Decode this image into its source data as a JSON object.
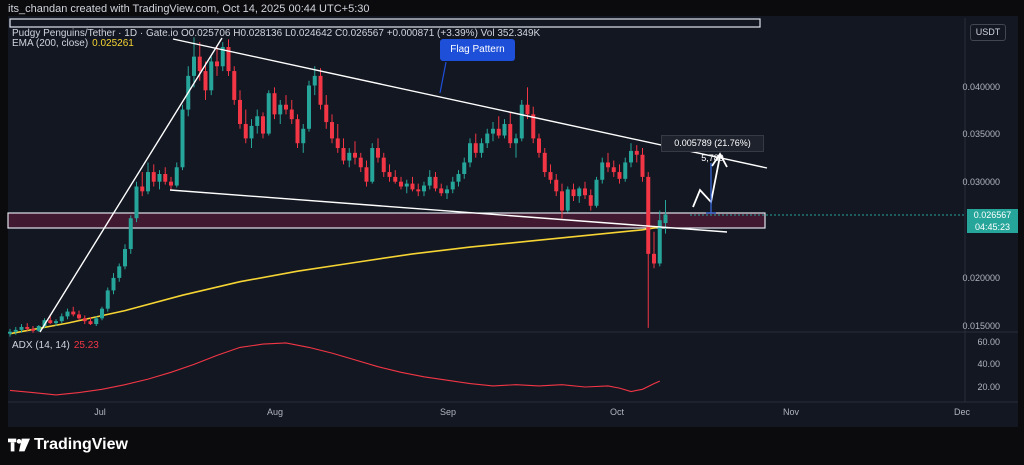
{
  "credit": "its_chandan created with TradingView.com, Oct 14, 2025 00:44 UTC+5:30",
  "symbol_line": "Pudgy Penguins/Tether · 1D · Gate.io  O0.025706 H0.028136 L0.024642 C0.026567 +0.000871 (+3.39%)  Vol 352.349K",
  "ema_label": "EMA (200, close)",
  "ema_value": "0.025261",
  "adx_label": "ADX (14, 14)",
  "adx_value": "25.23",
  "currency": "USDT",
  "price_labels": [
    "0.040000",
    "0.035000",
    "0.030000",
    "0.020000",
    "0.015000"
  ],
  "adx_labels": [
    "60.00",
    "40.00",
    "20.00"
  ],
  "x_labels": [
    "Jul",
    "Aug",
    "Sep",
    "Oct",
    "Nov",
    "Dec"
  ],
  "current_price": "0.026567",
  "countdown": "04:45:23",
  "callout": "Flag Pattern",
  "measurement": "0.005789 (21.76%) 5,789",
  "logo": "TradingView",
  "colors": {
    "up": "#26a69a",
    "down": "#f23645",
    "ema": "#f5d433",
    "adx": "#f23645",
    "zone": "#4a1a33"
  },
  "chart_data": {
    "type": "candlestick",
    "pair": "Pudgy Penguins/Tether",
    "timeframe": "1D",
    "exchange": "Gate.io",
    "ylim": [
      0.0145,
      0.0455
    ],
    "x_start": "2025-06-10",
    "candles": [
      [
        0.0142,
        0.0147,
        0.0139,
        0.0144
      ],
      [
        0.0144,
        0.0149,
        0.0141,
        0.0146
      ],
      [
        0.0146,
        0.0152,
        0.0143,
        0.0149
      ],
      [
        0.0149,
        0.0153,
        0.0145,
        0.0147
      ],
      [
        0.0147,
        0.015,
        0.0143,
        0.0145
      ],
      [
        0.0145,
        0.0151,
        0.0144,
        0.015
      ],
      [
        0.015,
        0.0158,
        0.0148,
        0.0156
      ],
      [
        0.0156,
        0.0162,
        0.0152,
        0.0153
      ],
      [
        0.0153,
        0.0157,
        0.015,
        0.0155
      ],
      [
        0.0155,
        0.0163,
        0.0153,
        0.016
      ],
      [
        0.016,
        0.0168,
        0.0157,
        0.0165
      ],
      [
        0.0165,
        0.017,
        0.016,
        0.0162
      ],
      [
        0.0162,
        0.0166,
        0.0156,
        0.0158
      ],
      [
        0.0158,
        0.0161,
        0.0152,
        0.0155
      ],
      [
        0.0155,
        0.0159,
        0.0151,
        0.0152
      ],
      [
        0.0152,
        0.016,
        0.015,
        0.0158
      ],
      [
        0.0158,
        0.017,
        0.0156,
        0.0168
      ],
      [
        0.0168,
        0.019,
        0.0165,
        0.0187
      ],
      [
        0.0187,
        0.0205,
        0.0183,
        0.02
      ],
      [
        0.02,
        0.0215,
        0.0196,
        0.0212
      ],
      [
        0.0212,
        0.0235,
        0.0209,
        0.023
      ],
      [
        0.023,
        0.0265,
        0.0225,
        0.0262
      ],
      [
        0.0262,
        0.03,
        0.0258,
        0.0295
      ],
      [
        0.0295,
        0.031,
        0.0285,
        0.029
      ],
      [
        0.029,
        0.032,
        0.0287,
        0.031
      ],
      [
        0.031,
        0.0318,
        0.0295,
        0.03
      ],
      [
        0.03,
        0.0312,
        0.0292,
        0.0308
      ],
      [
        0.0308,
        0.0315,
        0.0297,
        0.03
      ],
      [
        0.03,
        0.0305,
        0.0292,
        0.0296
      ],
      [
        0.0296,
        0.032,
        0.0294,
        0.0315
      ],
      [
        0.0315,
        0.038,
        0.0312,
        0.0375
      ],
      [
        0.0375,
        0.042,
        0.0368,
        0.041
      ],
      [
        0.041,
        0.045,
        0.0398,
        0.043
      ],
      [
        0.043,
        0.0445,
        0.0405,
        0.0415
      ],
      [
        0.0415,
        0.0425,
        0.0385,
        0.0395
      ],
      [
        0.0395,
        0.043,
        0.039,
        0.0425
      ],
      [
        0.0425,
        0.044,
        0.041,
        0.042
      ],
      [
        0.042,
        0.0445,
        0.0415,
        0.044
      ],
      [
        0.044,
        0.0448,
        0.041,
        0.0415
      ],
      [
        0.0415,
        0.042,
        0.038,
        0.0385
      ],
      [
        0.0385,
        0.0395,
        0.0355,
        0.036
      ],
      [
        0.036,
        0.0375,
        0.034,
        0.0345
      ],
      [
        0.0345,
        0.0365,
        0.0335,
        0.0358
      ],
      [
        0.0358,
        0.0375,
        0.035,
        0.0368
      ],
      [
        0.0368,
        0.0372,
        0.0345,
        0.035
      ],
      [
        0.035,
        0.0395,
        0.0348,
        0.0392
      ],
      [
        0.0392,
        0.0398,
        0.0365,
        0.037
      ],
      [
        0.037,
        0.0385,
        0.036,
        0.038
      ],
      [
        0.038,
        0.039,
        0.037,
        0.0375
      ],
      [
        0.0375,
        0.0385,
        0.036,
        0.0365
      ],
      [
        0.0365,
        0.037,
        0.0335,
        0.034
      ],
      [
        0.034,
        0.036,
        0.033,
        0.0355
      ],
      [
        0.0355,
        0.0405,
        0.0352,
        0.04
      ],
      [
        0.04,
        0.042,
        0.039,
        0.041
      ],
      [
        0.041,
        0.0418,
        0.0375,
        0.038
      ],
      [
        0.038,
        0.039,
        0.0355,
        0.0362
      ],
      [
        0.0362,
        0.037,
        0.034,
        0.0345
      ],
      [
        0.0345,
        0.036,
        0.033,
        0.0335
      ],
      [
        0.0335,
        0.0345,
        0.0318,
        0.0322
      ],
      [
        0.0322,
        0.0335,
        0.0315,
        0.033
      ],
      [
        0.033,
        0.0342,
        0.0318,
        0.0325
      ],
      [
        0.0325,
        0.033,
        0.031,
        0.0315
      ],
      [
        0.0315,
        0.0322,
        0.0295,
        0.03
      ],
      [
        0.03,
        0.034,
        0.0298,
        0.0335
      ],
      [
        0.0335,
        0.0345,
        0.032,
        0.0325
      ],
      [
        0.0325,
        0.033,
        0.0305,
        0.031
      ],
      [
        0.031,
        0.0318,
        0.03,
        0.0305
      ],
      [
        0.0305,
        0.0312,
        0.0298,
        0.03
      ],
      [
        0.03,
        0.0305,
        0.0292,
        0.0295
      ],
      [
        0.0295,
        0.0302,
        0.0288,
        0.0298
      ],
      [
        0.0298,
        0.0305,
        0.029,
        0.0292
      ],
      [
        0.0292,
        0.0298,
        0.0285,
        0.029
      ],
      [
        0.029,
        0.03,
        0.0285,
        0.0296
      ],
      [
        0.0296,
        0.0312,
        0.0292,
        0.0305
      ],
      [
        0.0305,
        0.031,
        0.029,
        0.0293
      ],
      [
        0.0293,
        0.0298,
        0.0285,
        0.0288
      ],
      [
        0.0288,
        0.0296,
        0.0282,
        0.0292
      ],
      [
        0.0292,
        0.0305,
        0.0288,
        0.03
      ],
      [
        0.03,
        0.0312,
        0.0295,
        0.0308
      ],
      [
        0.0308,
        0.0325,
        0.0303,
        0.032
      ],
      [
        0.032,
        0.0345,
        0.0315,
        0.034
      ],
      [
        0.034,
        0.035,
        0.0325,
        0.033
      ],
      [
        0.033,
        0.0345,
        0.0325,
        0.034
      ],
      [
        0.034,
        0.0355,
        0.0335,
        0.035
      ],
      [
        0.035,
        0.0362,
        0.0342,
        0.0355
      ],
      [
        0.0355,
        0.0368,
        0.0345,
        0.0348
      ],
      [
        0.0348,
        0.0365,
        0.0345,
        0.036
      ],
      [
        0.036,
        0.0372,
        0.0335,
        0.034
      ],
      [
        0.034,
        0.035,
        0.0325,
        0.0345
      ],
      [
        0.0345,
        0.0385,
        0.0342,
        0.038
      ],
      [
        0.038,
        0.0398,
        0.0365,
        0.037
      ],
      [
        0.037,
        0.0378,
        0.034,
        0.0345
      ],
      [
        0.0345,
        0.035,
        0.0325,
        0.033
      ],
      [
        0.033,
        0.0335,
        0.0305,
        0.031
      ],
      [
        0.031,
        0.0318,
        0.0298,
        0.0302
      ],
      [
        0.0302,
        0.0308,
        0.0285,
        0.029
      ],
      [
        0.029,
        0.0298,
        0.0262,
        0.027
      ],
      [
        0.027,
        0.0295,
        0.0268,
        0.0292
      ],
      [
        0.0292,
        0.0298,
        0.028,
        0.0285
      ],
      [
        0.0285,
        0.0295,
        0.0278,
        0.0293
      ],
      [
        0.0293,
        0.03,
        0.0282,
        0.0286
      ],
      [
        0.0286,
        0.0292,
        0.027,
        0.0275
      ],
      [
        0.0275,
        0.0305,
        0.0273,
        0.0302
      ],
      [
        0.0302,
        0.0325,
        0.0298,
        0.032
      ],
      [
        0.032,
        0.033,
        0.031,
        0.0315
      ],
      [
        0.0315,
        0.0322,
        0.0305,
        0.031
      ],
      [
        0.031,
        0.0318,
        0.0298,
        0.0303
      ],
      [
        0.0303,
        0.0325,
        0.03,
        0.032
      ],
      [
        0.032,
        0.034,
        0.0315,
        0.0332
      ],
      [
        0.0332,
        0.0338,
        0.032,
        0.0328
      ],
      [
        0.0328,
        0.0335,
        0.03,
        0.0305
      ],
      [
        0.0305,
        0.031,
        0.0148,
        0.0225
      ],
      [
        0.0225,
        0.0248,
        0.021,
        0.0215
      ],
      [
        0.0215,
        0.027,
        0.0212,
        0.026
      ],
      [
        0.0257,
        0.0281,
        0.0246,
        0.0266
      ]
    ],
    "ema200": [
      [
        0,
        0.0142
      ],
      [
        10,
        0.0153
      ],
      [
        20,
        0.0166
      ],
      [
        30,
        0.0182
      ],
      [
        40,
        0.0196
      ],
      [
        50,
        0.0207
      ],
      [
        60,
        0.0216
      ],
      [
        70,
        0.0225
      ],
      [
        80,
        0.0232
      ],
      [
        90,
        0.0238
      ],
      [
        100,
        0.0244
      ],
      [
        110,
        0.025
      ],
      [
        113,
        0.0253
      ]
    ],
    "adx": [
      [
        0,
        17
      ],
      [
        4,
        15
      ],
      [
        8,
        13
      ],
      [
        12,
        15
      ],
      [
        16,
        18
      ],
      [
        20,
        22
      ],
      [
        24,
        27
      ],
      [
        28,
        33
      ],
      [
        32,
        40
      ],
      [
        36,
        48
      ],
      [
        40,
        55
      ],
      [
        44,
        58
      ],
      [
        48,
        59
      ],
      [
        52,
        55
      ],
      [
        56,
        50
      ],
      [
        60,
        44
      ],
      [
        64,
        38
      ],
      [
        68,
        33
      ],
      [
        72,
        29
      ],
      [
        76,
        26
      ],
      [
        80,
        23
      ],
      [
        84,
        21
      ],
      [
        88,
        22
      ],
      [
        92,
        21
      ],
      [
        96,
        22
      ],
      [
        100,
        20
      ],
      [
        104,
        21
      ],
      [
        106,
        19
      ],
      [
        108,
        16
      ],
      [
        110,
        18
      ],
      [
        112,
        23
      ],
      [
        113,
        25.23
      ]
    ],
    "adx_ylim": [
      10,
      65
    ]
  }
}
